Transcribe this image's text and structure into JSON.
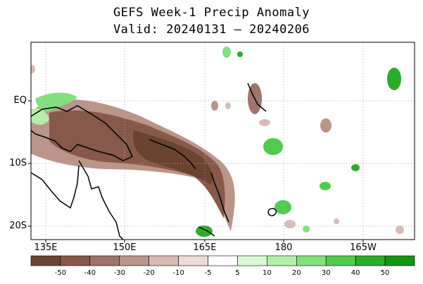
{
  "title": "GEFS Week-1 Precip Anomaly",
  "subtitle": "Valid: 20240131 – 20240206",
  "lat_labels": [
    "EQ",
    "10S",
    "20S"
  ],
  "lon_labels": [
    "135E",
    "150E",
    "165E",
    "180",
    "165W"
  ],
  "colorbar": {
    "labels": [
      "-50",
      "-40",
      "-30",
      "-20",
      "-10",
      "-5",
      "5",
      "10",
      "20",
      "30",
      "40",
      "50"
    ],
    "colors": [
      "#6b4430",
      "#86594a",
      "#a0746a",
      "#bb948a",
      "#d8bcb4",
      "#eedbd5",
      "#ffffff",
      "#dcf7d6",
      "#b4efaa",
      "#84e07c",
      "#50cc4c",
      "#2aae2a",
      "#129612"
    ]
  }
}
